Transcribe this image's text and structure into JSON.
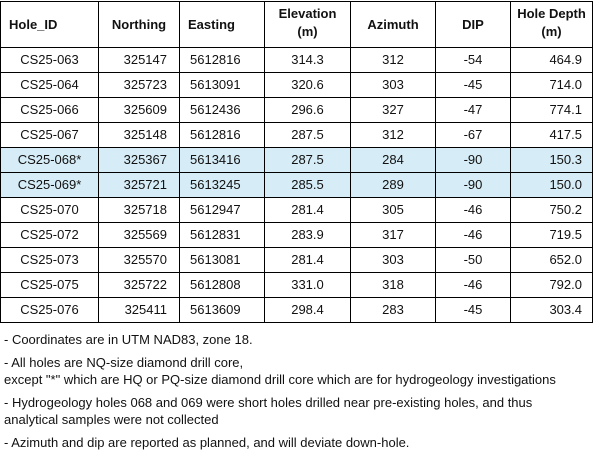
{
  "table": {
    "headers": {
      "hole_id": "Hole_ID",
      "northing": "Northing",
      "easting": "Easting",
      "elevation": "Elevation",
      "elevation_unit": "(m)",
      "azimuth": "Azimuth",
      "dip": "DIP",
      "hole_depth": "Hole Depth",
      "hole_depth_unit": "(m)"
    },
    "rows": [
      {
        "hole_id": "CS25-063",
        "northing": "325147",
        "easting": "5612816",
        "elevation": "314.3",
        "azimuth": "312",
        "dip": "-54",
        "depth": "464.9",
        "highlight": false
      },
      {
        "hole_id": "CS25-064",
        "northing": "325723",
        "easting": "5613091",
        "elevation": "320.6",
        "azimuth": "303",
        "dip": "-45",
        "depth": "714.0",
        "highlight": false
      },
      {
        "hole_id": "CS25-066",
        "northing": "325609",
        "easting": "5612436",
        "elevation": "296.6",
        "azimuth": "327",
        "dip": "-47",
        "depth": "774.1",
        "highlight": false
      },
      {
        "hole_id": "CS25-067",
        "northing": "325148",
        "easting": "5612816",
        "elevation": "287.5",
        "azimuth": "312",
        "dip": "-67",
        "depth": "417.5",
        "highlight": false
      },
      {
        "hole_id": "CS25-068*",
        "northing": "325367",
        "easting": "5613416",
        "elevation": "287.5",
        "azimuth": "284",
        "dip": "-90",
        "depth": "150.3",
        "highlight": true
      },
      {
        "hole_id": "CS25-069*",
        "northing": "325721",
        "easting": "5613245",
        "elevation": "285.5",
        "azimuth": "289",
        "dip": "-90",
        "depth": "150.0",
        "highlight": true
      },
      {
        "hole_id": "CS25-070",
        "northing": "325718",
        "easting": "5612947",
        "elevation": "281.4",
        "azimuth": "305",
        "dip": "-46",
        "depth": "750.2",
        "highlight": false
      },
      {
        "hole_id": "CS25-072",
        "northing": "325569",
        "easting": "5612831",
        "elevation": "283.9",
        "azimuth": "317",
        "dip": "-46",
        "depth": "719.5",
        "highlight": false
      },
      {
        "hole_id": "CS25-073",
        "northing": "325570",
        "easting": "5613081",
        "elevation": "281.4",
        "azimuth": "303",
        "dip": "-50",
        "depth": "652.0",
        "highlight": false
      },
      {
        "hole_id": "CS25-075",
        "northing": "325722",
        "easting": "5612808",
        "elevation": "331.0",
        "azimuth": "318",
        "dip": "-46",
        "depth": "792.0",
        "highlight": false
      },
      {
        "hole_id": "CS25-076",
        "northing": "325411",
        "easting": "5613609",
        "elevation": "298.4",
        "azimuth": "283",
        "dip": "-45",
        "depth": "303.4",
        "highlight": false
      }
    ],
    "highlight_color": "#d6ecf6"
  },
  "notes": [
    {
      "lines": [
        "- Coordinates are in UTM NAD83, zone 18."
      ]
    },
    {
      "lines": [
        "- All holes are NQ-size diamond drill core,",
        "except \"*\" which are HQ or PQ-size diamond drill core which are for hydrogeology investigations"
      ]
    },
    {
      "lines": [
        "- Hydrogeology holes 068 and 069 were short holes drilled near pre-existing holes, and thus",
        "analytical samples were not collected"
      ]
    },
    {
      "lines": [
        "- Azimuth and dip are reported as planned, and will deviate down-hole."
      ]
    }
  ]
}
